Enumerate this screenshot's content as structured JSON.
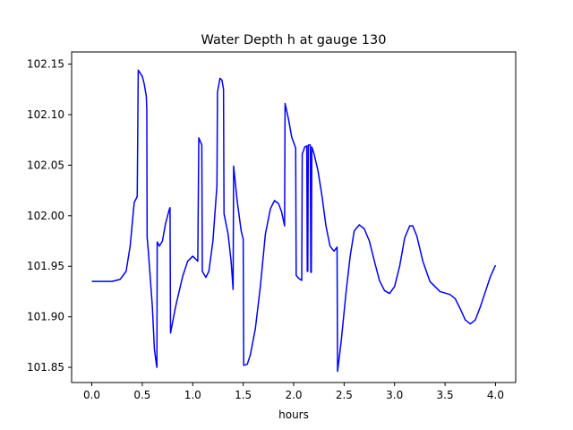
{
  "chart_data": {
    "type": "line",
    "title": "Water Depth h at gauge 130",
    "xlabel": "hours",
    "ylabel": "",
    "xlim": [
      -0.2,
      4.2
    ],
    "ylim": [
      101.835,
      102.162
    ],
    "xticks": [
      0.0,
      0.5,
      1.0,
      1.5,
      2.0,
      2.5,
      3.0,
      3.5,
      4.0
    ],
    "xtick_labels": [
      "0.0",
      "0.5",
      "1.0",
      "1.5",
      "2.0",
      "2.5",
      "3.0",
      "3.5",
      "4.0"
    ],
    "yticks": [
      101.85,
      101.9,
      101.95,
      102.0,
      102.05,
      102.1,
      102.15
    ],
    "ytick_labels": [
      "101.85",
      "101.90",
      "101.95",
      "102.00",
      "102.05",
      "102.10",
      "102.15"
    ],
    "grid": false,
    "series": [
      {
        "color": "#0000ff",
        "points": [
          [
            0.0,
            101.935
          ],
          [
            0.2,
            101.935
          ],
          [
            0.28,
            101.937
          ],
          [
            0.34,
            101.945
          ],
          [
            0.38,
            101.97
          ],
          [
            0.42,
            102.013
          ],
          [
            0.45,
            102.019
          ],
          [
            0.46,
            102.144
          ],
          [
            0.5,
            102.138
          ],
          [
            0.52,
            102.13
          ],
          [
            0.54,
            102.118
          ],
          [
            0.545,
            102.104
          ],
          [
            0.548,
            101.979
          ],
          [
            0.56,
            101.965
          ],
          [
            0.6,
            101.91
          ],
          [
            0.62,
            101.868
          ],
          [
            0.64,
            101.853
          ],
          [
            0.645,
            101.85
          ],
          [
            0.648,
            101.974
          ],
          [
            0.67,
            101.97
          ],
          [
            0.7,
            101.975
          ],
          [
            0.73,
            101.992
          ],
          [
            0.77,
            102.007
          ],
          [
            0.775,
            102.008
          ],
          [
            0.78,
            101.884
          ],
          [
            0.83,
            101.91
          ],
          [
            0.9,
            101.94
          ],
          [
            0.95,
            101.955
          ],
          [
            1.0,
            101.96
          ],
          [
            1.05,
            101.955
          ],
          [
            1.06,
            102.077
          ],
          [
            1.09,
            102.07
          ],
          [
            1.095,
            101.945
          ],
          [
            1.13,
            101.939
          ],
          [
            1.16,
            101.945
          ],
          [
            1.2,
            101.975
          ],
          [
            1.24,
            102.03
          ],
          [
            1.245,
            102.122
          ],
          [
            1.27,
            102.136
          ],
          [
            1.29,
            102.134
          ],
          [
            1.305,
            102.125
          ],
          [
            1.31,
            102.002
          ],
          [
            1.35,
            101.982
          ],
          [
            1.38,
            101.955
          ],
          [
            1.4,
            101.927
          ],
          [
            1.405,
            102.049
          ],
          [
            1.44,
            102.015
          ],
          [
            1.48,
            101.985
          ],
          [
            1.5,
            101.977
          ],
          [
            1.505,
            101.852
          ],
          [
            1.54,
            101.853
          ],
          [
            1.57,
            101.862
          ],
          [
            1.62,
            101.888
          ],
          [
            1.67,
            101.93
          ],
          [
            1.72,
            101.982
          ],
          [
            1.77,
            102.007
          ],
          [
            1.81,
            102.015
          ],
          [
            1.85,
            102.012
          ],
          [
            1.88,
            102.004
          ],
          [
            1.91,
            101.99
          ],
          [
            1.915,
            102.111
          ],
          [
            1.95,
            102.095
          ],
          [
            1.98,
            102.078
          ],
          [
            2.02,
            102.067
          ],
          [
            2.025,
            101.941
          ],
          [
            2.05,
            101.938
          ],
          [
            2.08,
            101.936
          ],
          [
            2.085,
            102.061
          ],
          [
            2.11,
            102.068
          ],
          [
            2.13,
            102.069
          ],
          [
            2.135,
            101.945
          ],
          [
            2.14,
            101.945
          ],
          [
            2.145,
            102.07
          ],
          [
            2.165,
            102.07
          ],
          [
            2.17,
            101.944
          ],
          [
            2.175,
            101.944
          ],
          [
            2.18,
            102.068
          ],
          [
            2.2,
            102.062
          ],
          [
            2.24,
            102.045
          ],
          [
            2.28,
            102.02
          ],
          [
            2.32,
            101.99
          ],
          [
            2.36,
            101.97
          ],
          [
            2.4,
            101.965
          ],
          [
            2.43,
            101.969
          ],
          [
            2.435,
            101.846
          ],
          [
            2.47,
            101.875
          ],
          [
            2.52,
            101.925
          ],
          [
            2.56,
            101.96
          ],
          [
            2.6,
            101.985
          ],
          [
            2.65,
            101.991
          ],
          [
            2.7,
            101.987
          ],
          [
            2.75,
            101.975
          ],
          [
            2.8,
            101.955
          ],
          [
            2.85,
            101.936
          ],
          [
            2.9,
            101.926
          ],
          [
            2.95,
            101.923
          ],
          [
            3.0,
            101.93
          ],
          [
            3.05,
            101.95
          ],
          [
            3.1,
            101.978
          ],
          [
            3.15,
            101.99
          ],
          [
            3.18,
            101.99
          ],
          [
            3.22,
            101.98
          ],
          [
            3.28,
            101.955
          ],
          [
            3.35,
            101.935
          ],
          [
            3.4,
            101.93
          ],
          [
            3.45,
            101.925
          ],
          [
            3.55,
            101.922
          ],
          [
            3.6,
            101.918
          ],
          [
            3.65,
            101.908
          ],
          [
            3.7,
            101.897
          ],
          [
            3.75,
            101.893
          ],
          [
            3.8,
            101.897
          ],
          [
            3.85,
            101.91
          ],
          [
            3.9,
            101.925
          ],
          [
            3.95,
            101.94
          ],
          [
            4.0,
            101.951
          ]
        ]
      }
    ]
  }
}
